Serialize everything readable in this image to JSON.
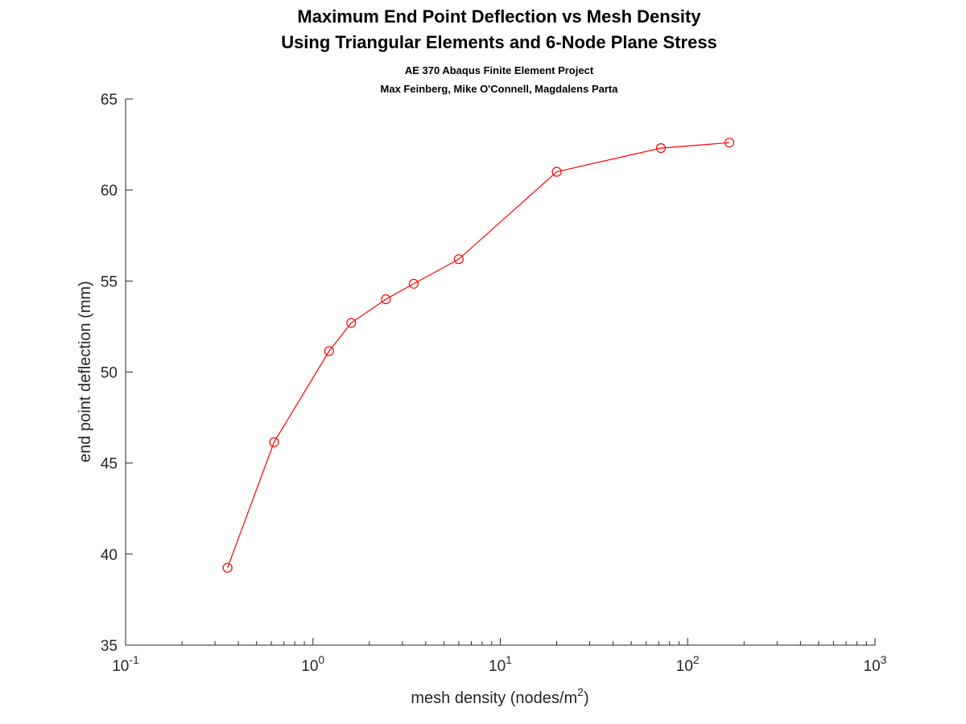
{
  "chart_data": {
    "type": "line",
    "title_lines": [
      "Maximum End Point Deflection vs Mesh Density",
      "Using Triangular Elements and 6-Node Plane Stress"
    ],
    "subtitle_lines": [
      "AE 370 Abaqus Finite Element Project",
      "Max Feinberg, Mike O'Connell, Magdalens Parta"
    ],
    "xlabel": "mesh density (nodes/m",
    "xlabel_superscript": "2",
    "xlabel_suffix": ")",
    "ylabel": "end point deflection (mm)",
    "xscale": "log",
    "xlim": [
      0.1,
      1000
    ],
    "ylim": [
      35,
      65
    ],
    "yticks": [
      35,
      40,
      45,
      50,
      55,
      60,
      65
    ],
    "xticks": [
      {
        "base": "10",
        "exp": "-1"
      },
      {
        "base": "10",
        "exp": "0"
      },
      {
        "base": "10",
        "exp": "1"
      },
      {
        "base": "10",
        "exp": "2"
      },
      {
        "base": "10",
        "exp": "3"
      }
    ],
    "grid": false,
    "series": [
      {
        "color": "#ff0000",
        "marker": "circle",
        "x": [
          0.35,
          0.62,
          1.22,
          1.6,
          2.45,
          3.45,
          6.0,
          20.0,
          72.0,
          167.0
        ],
        "y": [
          39.25,
          46.15,
          51.15,
          52.7,
          54.0,
          54.85,
          56.2,
          61.0,
          62.3,
          62.6
        ]
      }
    ]
  }
}
